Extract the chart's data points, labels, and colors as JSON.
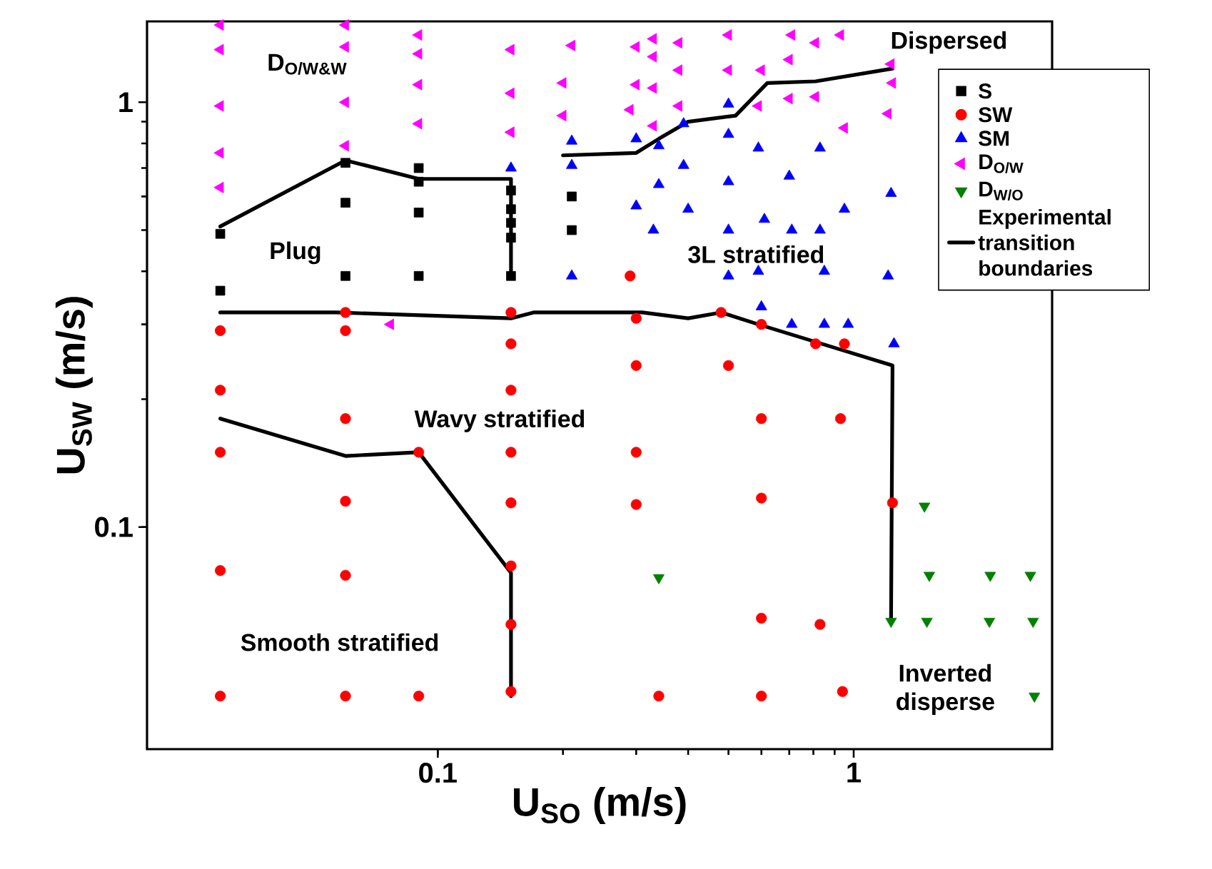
{
  "chart_data": {
    "type": "scatter",
    "xlabel": "U$_{SO}$ (m/s)",
    "ylabel": "U$_{SW}$ (m/s)",
    "log": "xy",
    "xlim": [
      0.02,
      3
    ],
    "ylim": [
      0.03,
      1.55
    ],
    "xticks": [
      0.1,
      1
    ],
    "yticks": [
      0.1,
      1
    ],
    "grid": false,
    "legend": "right",
    "series": [
      {
        "name": "S",
        "type": "scatter",
        "marker": "square",
        "color": "#000000",
        "x": [
          0.03,
          0.03,
          0.06,
          0.06,
          0.06,
          0.09,
          0.09,
          0.09,
          0.09,
          0.15,
          0.15,
          0.15,
          0.15,
          0.15,
          0.21,
          0.21
        ],
        "values": [
          0.49,
          0.36,
          0.72,
          0.58,
          0.39,
          0.7,
          0.65,
          0.55,
          0.39,
          0.62,
          0.56,
          0.52,
          0.48,
          0.39,
          0.6,
          0.5
        ]
      },
      {
        "name": "SW",
        "type": "scatter",
        "marker": "circle",
        "color": "#ff0000",
        "x": [
          0.03,
          0.06,
          0.06,
          0.15,
          0.15,
          0.03,
          0.06,
          0.03,
          0.06,
          0.03,
          0.06,
          0.03,
          0.06,
          0.09,
          0.15,
          0.09,
          0.15,
          0.15,
          0.15,
          0.15,
          0.15,
          0.29,
          0.3,
          0.48,
          0.6,
          0.81,
          0.95,
          0.3,
          0.5,
          0.6,
          0.93,
          0.3,
          0.3,
          0.6,
          1.24,
          0.6,
          0.83,
          0.34,
          0.6,
          0.94
        ],
        "values": [
          0.29,
          0.32,
          0.29,
          0.32,
          0.27,
          0.21,
          0.18,
          0.15,
          0.115,
          0.079,
          0.077,
          0.04,
          0.04,
          0.04,
          0.21,
          0.15,
          0.15,
          0.114,
          0.081,
          0.059,
          0.041,
          0.39,
          0.31,
          0.32,
          0.3,
          0.27,
          0.27,
          0.24,
          0.24,
          0.18,
          0.18,
          0.15,
          0.113,
          0.117,
          0.114,
          0.061,
          0.059,
          0.04,
          0.04,
          0.041
        ]
      },
      {
        "name": "SM",
        "type": "scatter",
        "marker": "triangle",
        "color": "#0000ff",
        "x": [
          0.15,
          0.21,
          0.21,
          0.3,
          0.34,
          0.39,
          0.39,
          0.34,
          0.3,
          0.4,
          0.33,
          0.5,
          0.5,
          0.5,
          0.5,
          0.59,
          0.7,
          0.61,
          0.71,
          0.83,
          0.83,
          0.95,
          1.23,
          0.21,
          0.5,
          0.59,
          0.85,
          1.21,
          0.6,
          0.71,
          0.85,
          0.97,
          1.25
        ],
        "values": [
          0.7,
          0.81,
          0.71,
          0.82,
          0.79,
          0.89,
          0.71,
          0.64,
          0.57,
          0.56,
          0.5,
          0.99,
          0.84,
          0.65,
          0.5,
          0.78,
          0.67,
          0.53,
          0.5,
          0.78,
          0.5,
          0.56,
          0.61,
          0.39,
          0.39,
          0.4,
          0.4,
          0.39,
          0.33,
          0.3,
          0.3,
          0.3,
          0.27
        ]
      },
      {
        "name": "D$_{O/W}$",
        "type": "scatter",
        "marker": "triangle-left",
        "color": "#ff00ff",
        "x": [
          0.03,
          0.03,
          0.03,
          0.03,
          0.03,
          0.06,
          0.06,
          0.06,
          0.06,
          0.09,
          0.09,
          0.09,
          0.09,
          0.15,
          0.15,
          0.15,
          0.077,
          0.21,
          0.3,
          0.33,
          0.38,
          0.5,
          0.71,
          0.81,
          0.93,
          0.2,
          0.3,
          0.33,
          0.38,
          0.5,
          0.6,
          0.7,
          0.2,
          0.29,
          0.33,
          0.38,
          0.33,
          0.59,
          0.7,
          0.81,
          1.23,
          1.24,
          1.21,
          0.95
        ],
        "values": [
          1.52,
          1.33,
          0.98,
          0.76,
          0.63,
          1.52,
          1.35,
          1.0,
          0.79,
          1.44,
          1.3,
          1.1,
          0.89,
          1.33,
          1.05,
          0.85,
          0.3,
          1.36,
          1.35,
          1.41,
          1.38,
          1.44,
          1.44,
          1.38,
          1.44,
          1.11,
          1.1,
          1.28,
          1.19,
          1.19,
          1.19,
          1.26,
          0.93,
          0.96,
          1.08,
          0.98,
          0.88,
          0.98,
          1.02,
          1.03,
          1.23,
          1.11,
          0.94,
          0.87
        ]
      },
      {
        "name": "D$_{W/O}$",
        "type": "scatter",
        "marker": "triangle-down",
        "color": "#008000",
        "x": [
          0.34,
          1.48,
          1.52,
          2.13,
          2.66,
          1.23,
          1.5,
          2.12,
          2.7,
          2.72
        ],
        "values": [
          0.076,
          0.112,
          0.077,
          0.077,
          0.077,
          0.06,
          0.06,
          0.06,
          0.06,
          0.04
        ]
      },
      {
        "name": "Experimental transition boundaries",
        "type": "line",
        "marker": "none",
        "color": "#000000",
        "x": [
          0.03,
          0.06,
          0.09,
          0.15,
          0.15
        ],
        "values": [
          0.51,
          0.73,
          0.66,
          0.66,
          0.39
        ]
      },
      {
        "type": "line",
        "marker": "none",
        "color": "#000000",
        "x": [
          0.2,
          0.3,
          0.34,
          0.4,
          0.52,
          0.62,
          0.81,
          1.24
        ],
        "values": [
          0.75,
          0.76,
          0.82,
          0.9,
          0.93,
          1.11,
          1.12,
          1.2
        ]
      },
      {
        "type": "line",
        "marker": "none",
        "color": "#000000",
        "x": [
          0.03,
          0.057,
          0.15,
          0.17,
          0.31,
          0.4,
          0.48,
          0.59,
          0.95,
          1.24,
          1.23
        ],
        "values": [
          0.32,
          0.32,
          0.31,
          0.32,
          0.32,
          0.31,
          0.32,
          0.3,
          0.26,
          0.24,
          0.061
        ]
      },
      {
        "type": "line",
        "marker": "none",
        "color": "#000000",
        "x": [
          0.03,
          0.06,
          0.09,
          0.15,
          0.15
        ],
        "values": [
          0.18,
          0.147,
          0.15,
          0.078,
          0.04
        ]
      }
    ],
    "annotations": [
      "D$_{O/W&W}$",
      "Dispersed",
      "Plug",
      "3L stratified",
      "Wavy stratified",
      "Smooth stratified",
      "Inverted disperse"
    ]
  }
}
